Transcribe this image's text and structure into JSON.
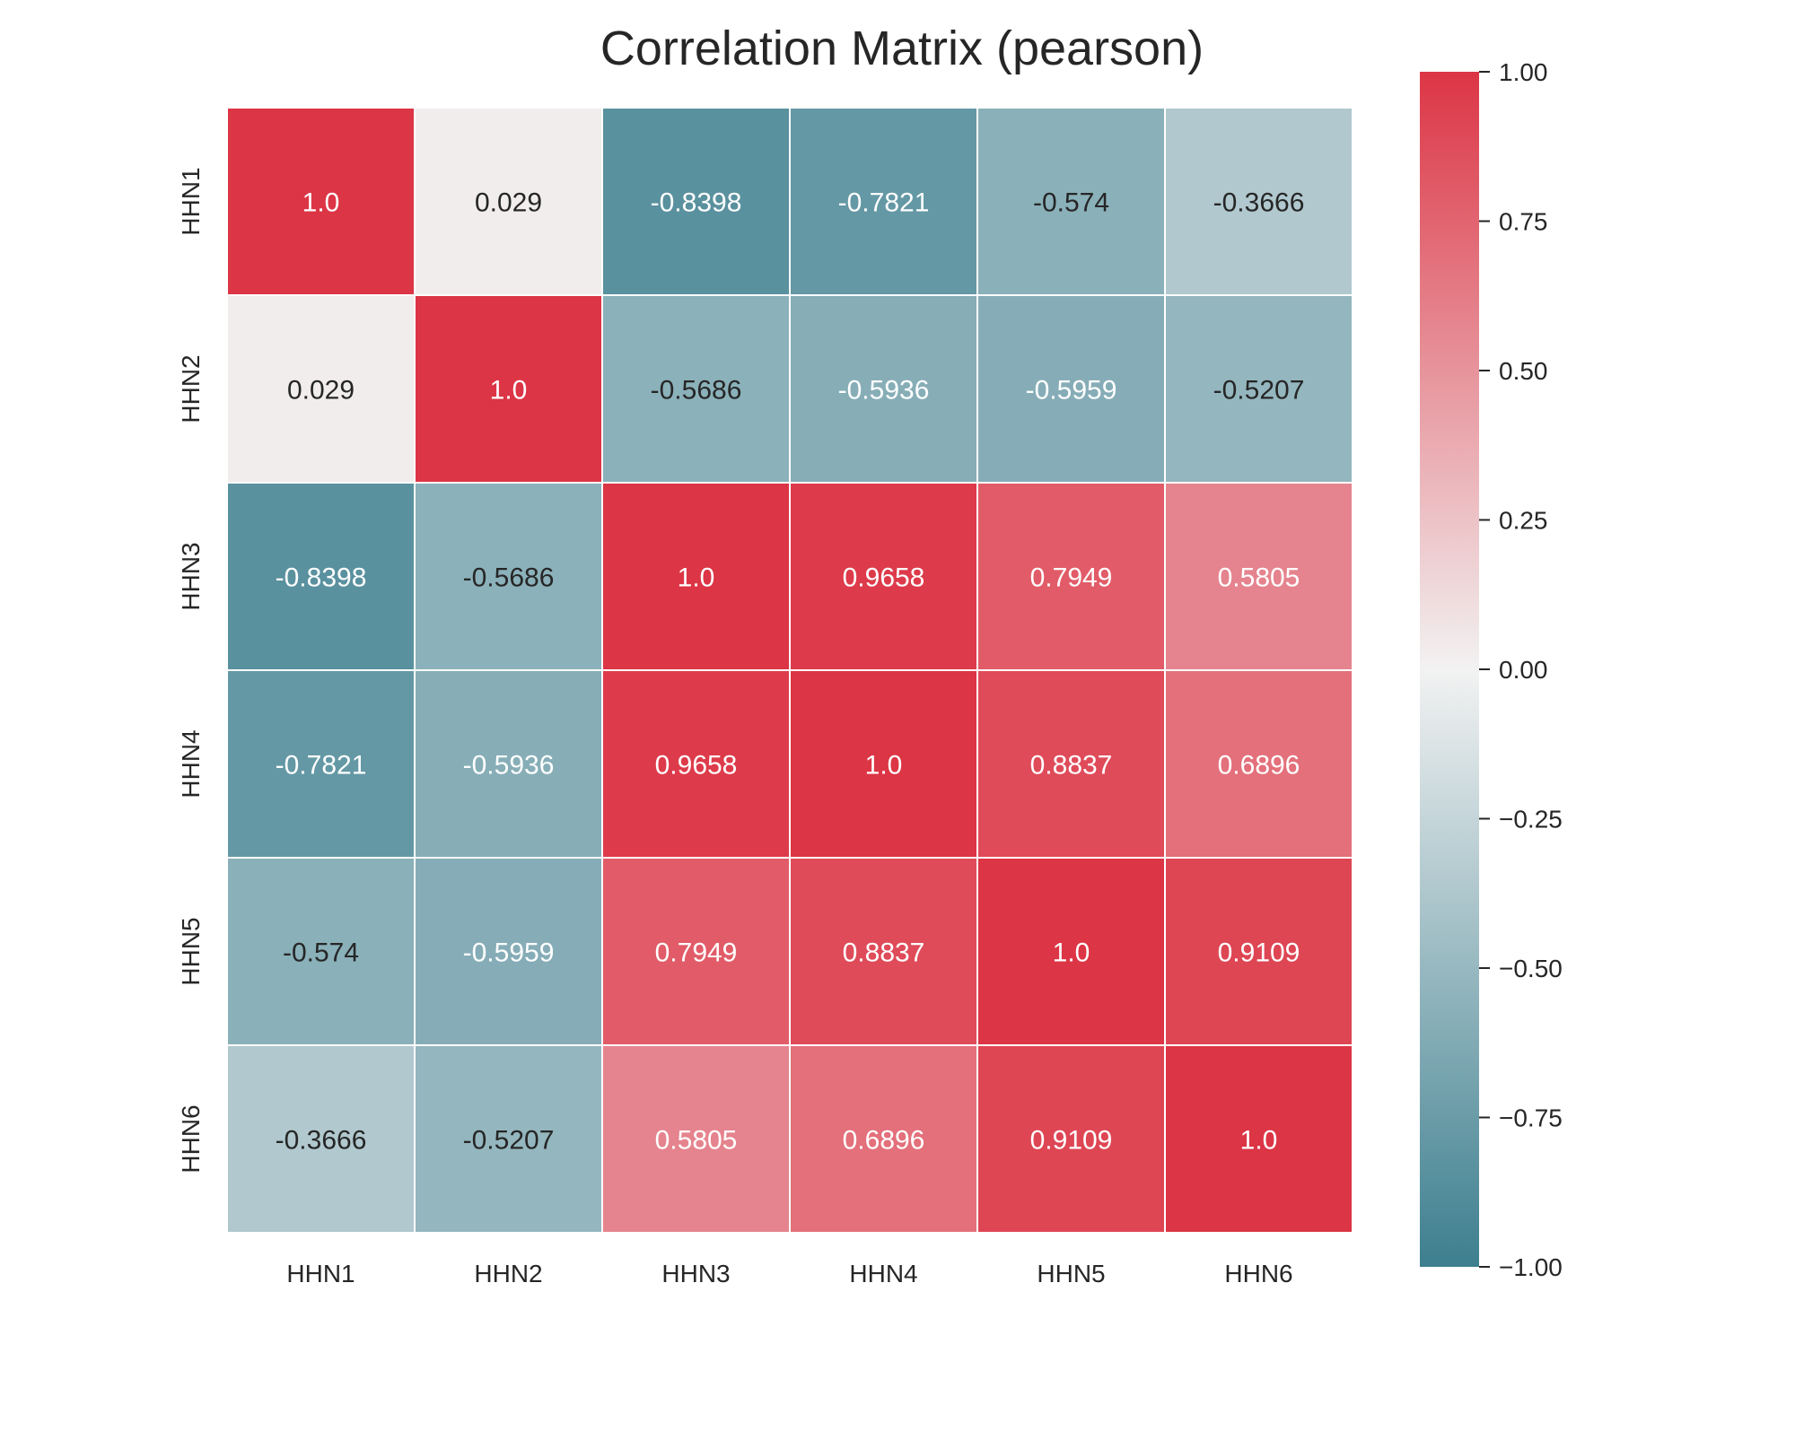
{
  "chart_data": {
    "type": "heatmap",
    "title": "Correlation Matrix (pearson)",
    "xlabel": "",
    "ylabel": "",
    "labels": [
      "HHN1",
      "HHN2",
      "HHN3",
      "HHN4",
      "HHN5",
      "HHN6"
    ],
    "cell_text": [
      [
        "1.0",
        "0.029",
        "-0.8398",
        "-0.7821",
        "-0.574",
        "-0.3666"
      ],
      [
        "0.029",
        "1.0",
        "-0.5686",
        "-0.5936",
        "-0.5959",
        "-0.5207"
      ],
      [
        "-0.8398",
        "-0.5686",
        "1.0",
        "0.9658",
        "0.7949",
        "0.5805"
      ],
      [
        "-0.7821",
        "-0.5936",
        "0.9658",
        "1.0",
        "0.8837",
        "0.6896"
      ],
      [
        "-0.574",
        "-0.5959",
        "0.7949",
        "0.8837",
        "1.0",
        "0.9109"
      ],
      [
        "-0.3666",
        "-0.5207",
        "0.5805",
        "0.6896",
        "0.9109",
        "1.0"
      ]
    ],
    "values": [
      [
        1.0,
        0.029,
        -0.8398,
        -0.7821,
        -0.574,
        -0.3666
      ],
      [
        0.029,
        1.0,
        -0.5686,
        -0.5936,
        -0.5959,
        -0.5207
      ],
      [
        -0.8398,
        -0.5686,
        1.0,
        0.9658,
        0.7949,
        0.5805
      ],
      [
        -0.7821,
        -0.5936,
        0.9658,
        1.0,
        0.8837,
        0.6896
      ],
      [
        -0.574,
        -0.5959,
        0.7949,
        0.8837,
        1.0,
        0.9109
      ],
      [
        -0.3666,
        -0.5207,
        0.5805,
        0.6896,
        0.9109,
        1.0
      ]
    ],
    "colorbar": {
      "range": [
        -1.0,
        1.0
      ],
      "tick_values": [
        1.0,
        0.75,
        0.5,
        0.25,
        0.0,
        -0.25,
        -0.5,
        -0.75,
        -1.0
      ],
      "tick_labels": [
        "1.00",
        "0.75",
        "0.50",
        "0.25",
        "0.00",
        "−0.25",
        "−0.50",
        "−0.75",
        "−1.00"
      ],
      "color_low": "#3d7f8f",
      "color_mid": "#f2f2f2",
      "color_high": "#dc3545"
    },
    "grid": false,
    "legend": "right"
  }
}
